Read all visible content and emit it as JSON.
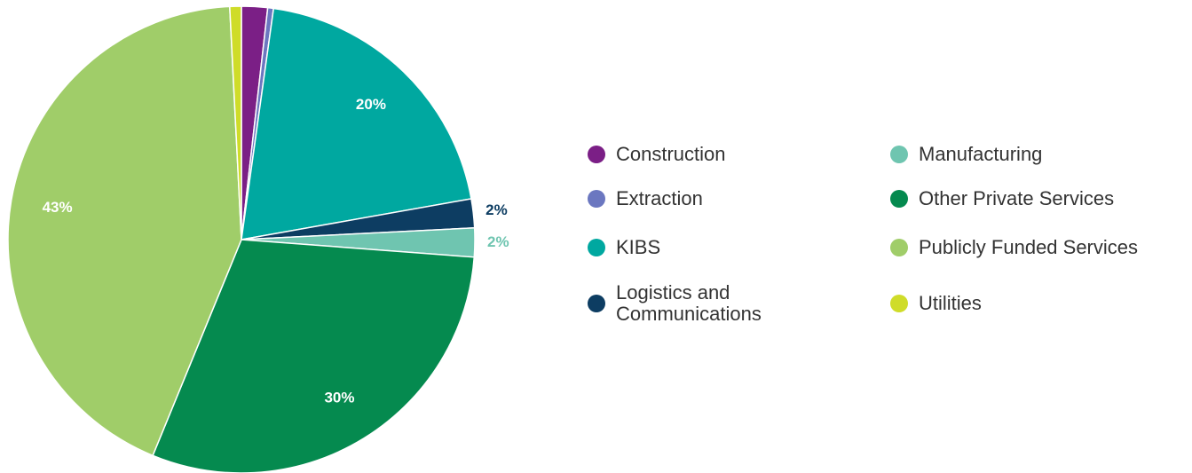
{
  "chart_data": {
    "type": "pie",
    "categories": [
      "Construction",
      "Extraction",
      "KIBS",
      "Logistics and Communications",
      "Manufacturing",
      "Other Private Services",
      "Publicly Funded Services",
      "Utilities"
    ],
    "values": [
      1.8,
      0.4,
      20,
      2,
      2,
      30,
      43,
      0.8
    ],
    "value_labels": [
      null,
      null,
      "20%",
      "2%",
      "2%",
      "30%",
      "43%",
      null
    ],
    "colors": [
      "#7b1f86",
      "#6b77c0",
      "#00a8a0",
      "#0d3d62",
      "#6fc5b0",
      "#058a4f",
      "#a0cd69",
      "#cfdc29"
    ],
    "legend": "right"
  }
}
